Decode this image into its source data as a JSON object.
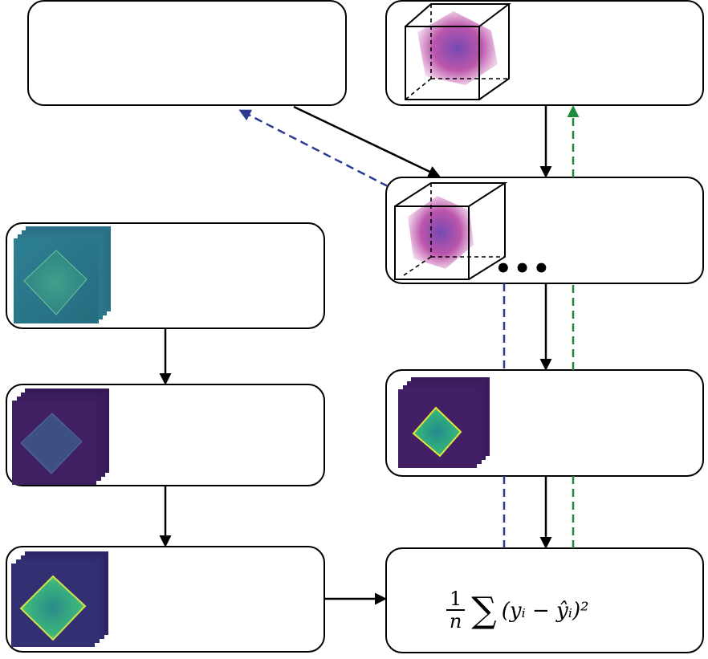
{
  "colors": {
    "blue_dashed": "#2b3990",
    "green_dashed": "#1e8a3e",
    "volume_magenta": "#a0359a",
    "viridis_dark": "#3b1a5a",
    "viridis_teal": "#2a8c8a",
    "viridis_yellow": "#e8e43a"
  },
  "icons": {
    "volume": "purple-3d-volume-in-wireframe-cube",
    "measured_stack": "teal-diffraction-image-stack",
    "intermediate_stack": "dark-purple-diffraction-image-stack",
    "reconstructed_stack": "viridis-green-image-stack",
    "simulated_stack": "viridis-simulated-image-stack"
  },
  "ellipsis": "•••",
  "loss": {
    "numerator": "1",
    "denominator": "n",
    "sum_symbol": "∑",
    "expression": "(yᵢ − ŷᵢ)²"
  }
}
